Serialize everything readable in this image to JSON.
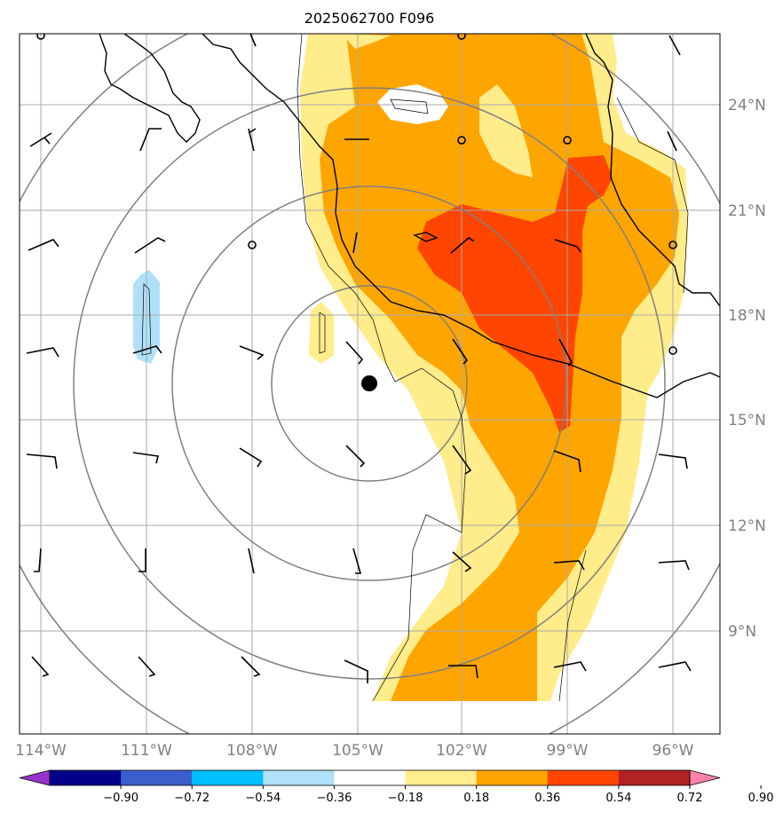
{
  "title": "2025062700 F096",
  "lon_labels": [
    "114°W",
    "111°W",
    "108°W",
    "105°W",
    "102°W",
    "99°W",
    "96°W"
  ],
  "lat_labels": [
    "24°N",
    "21°N",
    "18°N",
    "15°N",
    "12°N",
    "9°N"
  ],
  "colorbar": {
    "tick_labels": [
      "−0.90",
      "−0.72",
      "−0.54",
      "−0.36",
      "−0.18",
      "0.18",
      "0.36",
      "0.54",
      "0.72",
      "0.90"
    ],
    "colors": [
      "#9932cc",
      "#00008b",
      "#3a5fcd",
      "#00bfff",
      "#b0e0f8",
      "#ffffff",
      "#ffec8b",
      "#ffa500",
      "#ff4500",
      "#b22222",
      "#ff82ab"
    ]
  },
  "center_marker": "storm-center-dot"
}
